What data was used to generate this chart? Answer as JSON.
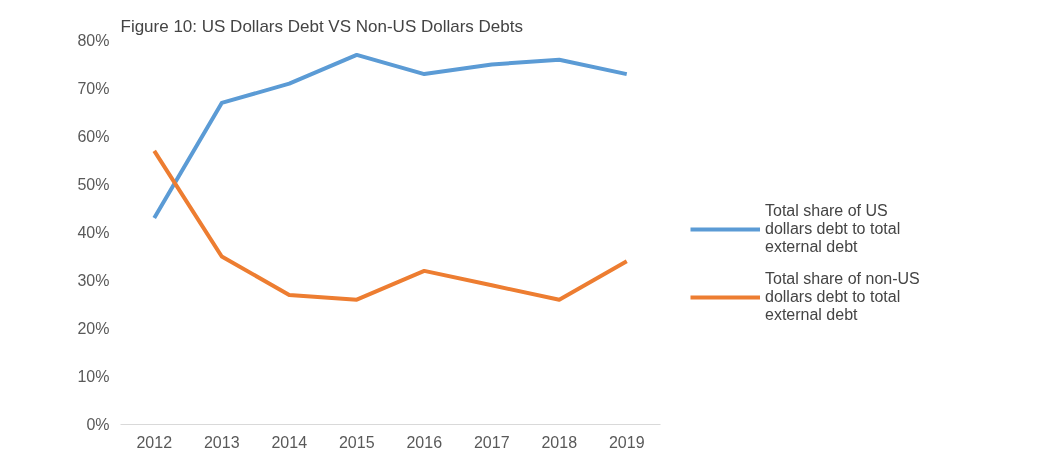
{
  "chart_data": {
    "type": "line",
    "title": "Figure 10: US Dollars Debt VS Non-US Dollars Debts",
    "categories": [
      "2012",
      "2013",
      "2014",
      "2015",
      "2016",
      "2017",
      "2018",
      "2019"
    ],
    "series": [
      {
        "name": "Total share of US dollars debt to total external debt",
        "color": "#5b9bd5",
        "values": [
          43,
          67,
          71,
          77,
          73,
          75,
          76,
          73
        ]
      },
      {
        "name": "Total share of non-US dollars debt to total external debt",
        "color": "#ed7d31",
        "values": [
          57,
          35,
          27,
          26,
          32,
          29,
          26,
          34
        ]
      }
    ],
    "ylim": [
      0,
      80
    ],
    "yticks": [
      {
        "value": 0,
        "label": "0%"
      },
      {
        "value": 10,
        "label": "10%"
      },
      {
        "value": 20,
        "label": "20%"
      },
      {
        "value": 30,
        "label": "30%"
      },
      {
        "value": 40,
        "label": "40%"
      },
      {
        "value": 50,
        "label": "50%"
      },
      {
        "value": 60,
        "label": "60%"
      },
      {
        "value": 70,
        "label": "70%"
      },
      {
        "value": 80,
        "label": "80%"
      }
    ],
    "grid": false,
    "legend": "right",
    "marker": "none",
    "line_style": "solid"
  }
}
